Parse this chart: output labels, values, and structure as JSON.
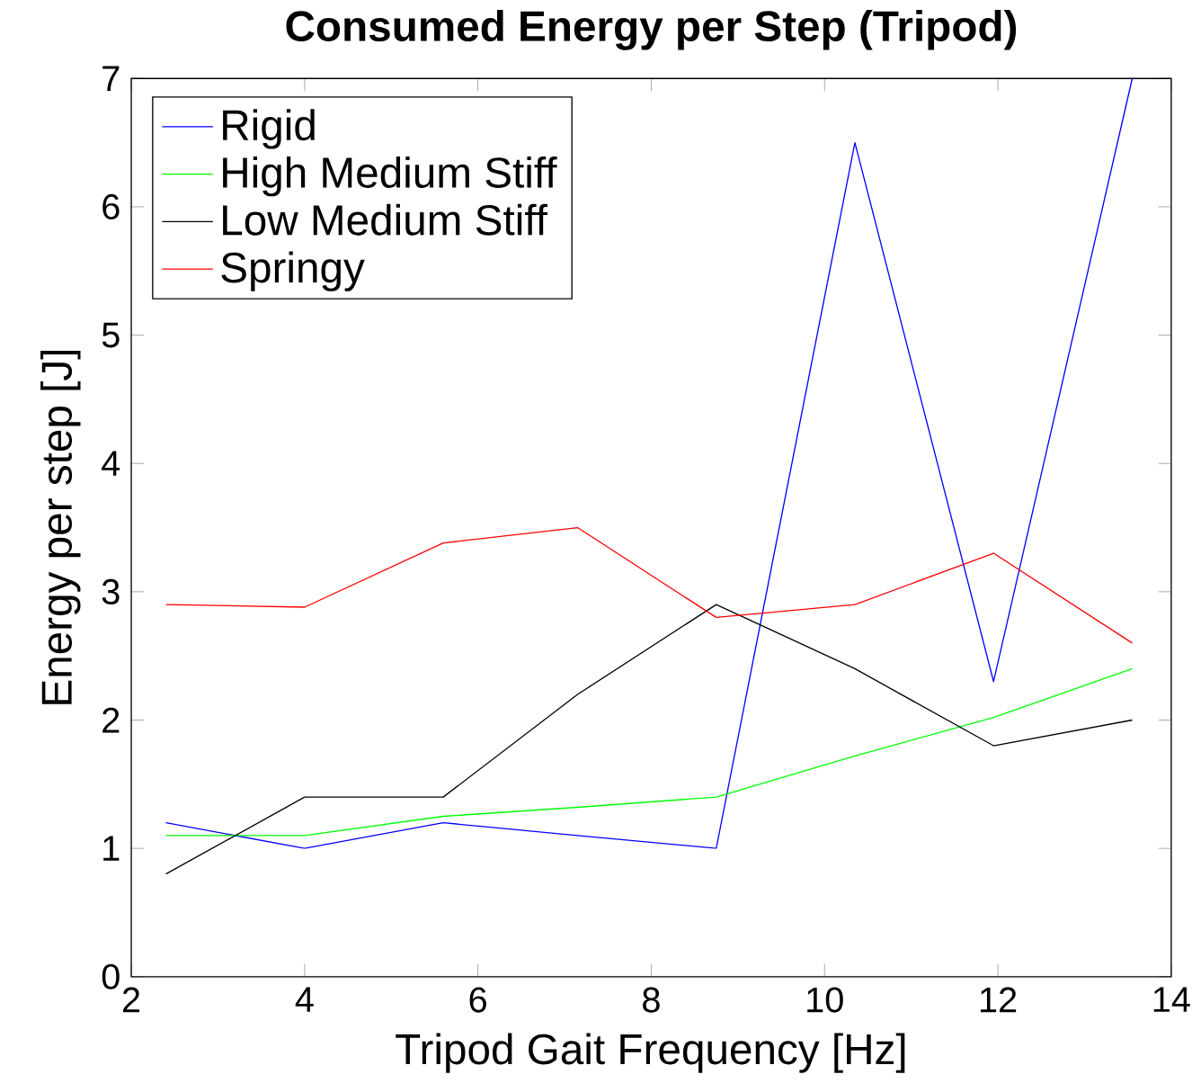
{
  "chart_data": {
    "type": "line",
    "title": "Consumed Energy per Step (Tripod)",
    "xlabel": "Tripod Gait Frequency [Hz]",
    "ylabel": "Energy per step [J]",
    "x": [
      2.4,
      4.0,
      5.6,
      7.15,
      8.75,
      10.35,
      11.95,
      13.55
    ],
    "series": [
      {
        "name": "Rigid",
        "color": "#0000ff",
        "values": [
          1.2,
          1.0,
          1.2,
          1.1,
          1.0,
          6.5,
          2.3,
          7.0
        ]
      },
      {
        "name": "High Medium Stiff",
        "color": "#00ff00",
        "values": [
          1.1,
          1.1,
          1.25,
          1.32,
          1.4,
          1.72,
          2.02,
          2.4
        ]
      },
      {
        "name": "Low Medium Stiff",
        "color": "#000000",
        "values": [
          0.8,
          1.4,
          1.4,
          2.2,
          2.9,
          2.4,
          1.8,
          2.0
        ]
      },
      {
        "name": "Springy",
        "color": "#ff0000",
        "values": [
          2.9,
          2.88,
          3.38,
          3.5,
          2.8,
          2.9,
          3.3,
          2.6
        ]
      }
    ],
    "xlim": [
      2,
      14
    ],
    "ylim": [
      0,
      7
    ],
    "xticks": [
      2,
      4,
      6,
      8,
      10,
      12,
      14
    ],
    "yticks": [
      0,
      1,
      2,
      3,
      4,
      5,
      6,
      7
    ],
    "legend": "top left",
    "grid": false,
    "marker": "none",
    "line_style": "solid"
  }
}
